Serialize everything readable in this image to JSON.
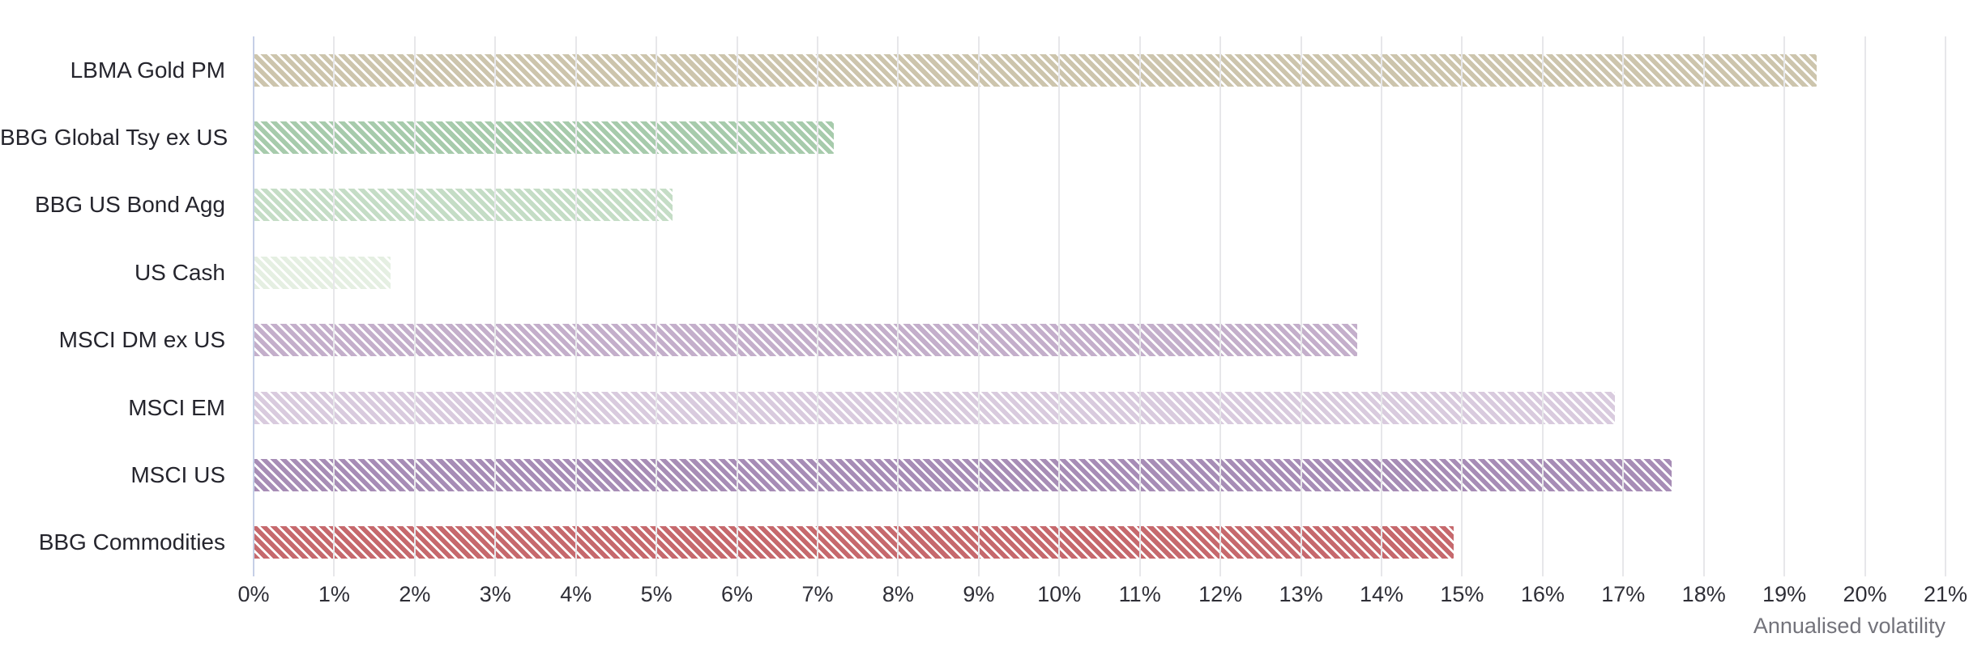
{
  "chart_data": {
    "type": "bar",
    "orientation": "horizontal",
    "title": "",
    "xlabel": "Annualised volatility",
    "ylabel": "",
    "xlim": [
      0,
      21
    ],
    "tick_step_percent": 1,
    "grid": true,
    "legend": "none",
    "hatch_style": "diagonal-stripes",
    "categories": [
      "LBMA Gold PM",
      "BBG Global Tsy ex US",
      "BBG US Bond Agg",
      "US Cash",
      "MSCI DM ex US",
      "MSCI EM",
      "MSCI US",
      "BBG Commodities"
    ],
    "values": [
      19.4,
      7.2,
      5.2,
      1.7,
      13.7,
      16.9,
      17.6,
      14.9
    ],
    "unit": "%",
    "bar_colors": [
      "#cdc5ad",
      "#a7cbac",
      "#c5ddc6",
      "#e5efe2",
      "#c4afcb",
      "#d9cbde",
      "#a78db6",
      "#c6696d"
    ],
    "tick_labels": [
      "0%",
      "1%",
      "2%",
      "3%",
      "4%",
      "5%",
      "6%",
      "7%",
      "8%",
      "9%",
      "10%",
      "11%",
      "12%",
      "13%",
      "14%",
      "15%",
      "16%",
      "17%",
      "18%",
      "19%",
      "20%",
      "21%"
    ],
    "colors": {
      "background": "#ffffff",
      "gridline": "#e7e7ea",
      "zero_axis_line": "#c5cfe6",
      "category_label": "#25252d",
      "tick_label": "#2e2e36",
      "caption": "#73737b"
    }
  }
}
